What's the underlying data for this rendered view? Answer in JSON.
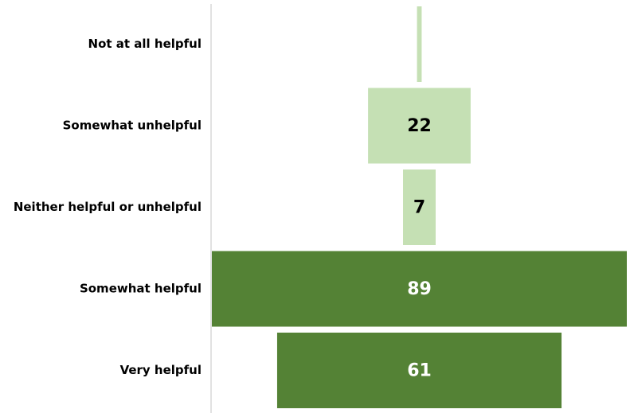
{
  "chart_data": {
    "type": "funnel",
    "categories": [
      "Not at all helpful",
      "Somewhat unhelpful",
      "Neither helpful or unhelpful",
      "Somewhat helpful",
      "Very helpful"
    ],
    "values": [
      1,
      22,
      7,
      89,
      61
    ],
    "colors": [
      "#c5e0b4",
      "#c5e0b4",
      "#c5e0b4",
      "#548235",
      "#548235"
    ]
  }
}
